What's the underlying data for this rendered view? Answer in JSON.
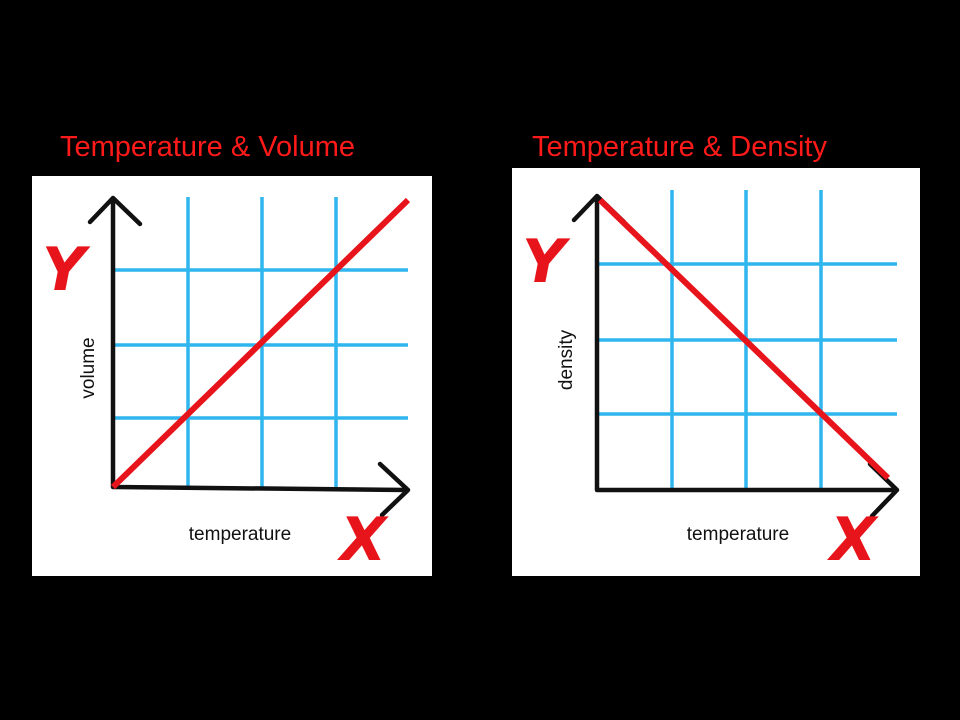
{
  "panels": [
    {
      "title": "Temperature & Volume",
      "y_letter": "Y",
      "x_letter": "X",
      "y_label": "volume",
      "x_label": "temperature"
    },
    {
      "title": "Temperature & Density",
      "y_letter": "Y",
      "x_letter": "X",
      "y_label": "density",
      "x_label": "temperature"
    }
  ]
}
